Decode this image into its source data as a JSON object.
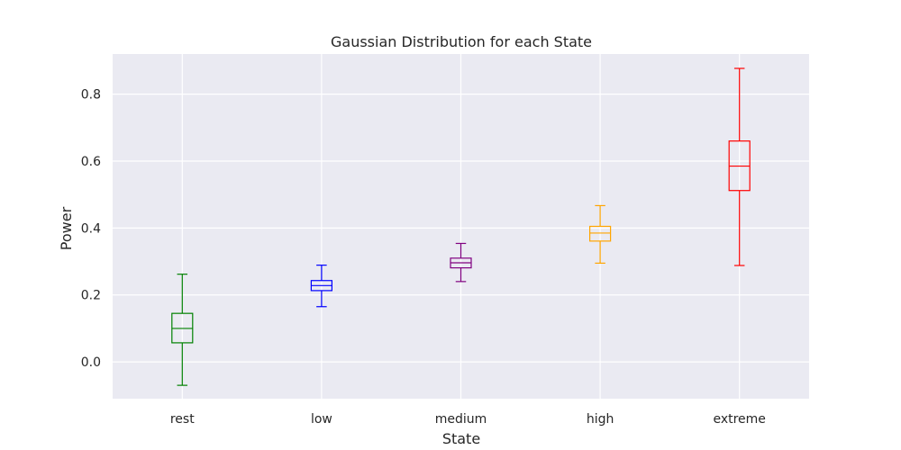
{
  "chart_data": {
    "type": "box",
    "title": "Gaussian Distribution for each State",
    "xlabel": "State",
    "ylabel": "Power",
    "ylim": [
      -0.11,
      0.92
    ],
    "yticks": [
      0.0,
      0.2,
      0.4,
      0.6,
      0.8
    ],
    "ytick_labels": [
      "0.0",
      "0.2",
      "0.4",
      "0.6",
      "0.8"
    ],
    "grid": true,
    "background": "#eaeaf2",
    "grid_color": "#ffffff",
    "categories": [
      "rest",
      "low",
      "medium",
      "high",
      "extreme"
    ],
    "boxes": [
      {
        "name": "rest",
        "color": "#008000",
        "whislo": -0.07,
        "q1": 0.057,
        "med": 0.1,
        "q3": 0.145,
        "whishi": 0.262
      },
      {
        "name": "low",
        "color": "#0000ff",
        "whislo": 0.165,
        "q1": 0.213,
        "med": 0.228,
        "q3": 0.243,
        "whishi": 0.289
      },
      {
        "name": "medium",
        "color": "#800080",
        "whislo": 0.24,
        "q1": 0.281,
        "med": 0.296,
        "q3": 0.31,
        "whishi": 0.354
      },
      {
        "name": "high",
        "color": "#ffa500",
        "whislo": 0.295,
        "q1": 0.361,
        "med": 0.385,
        "q3": 0.405,
        "whishi": 0.467
      },
      {
        "name": "extreme",
        "color": "#ff0000",
        "whislo": 0.288,
        "q1": 0.512,
        "med": 0.585,
        "q3": 0.66,
        "whishi": 0.877
      }
    ]
  }
}
